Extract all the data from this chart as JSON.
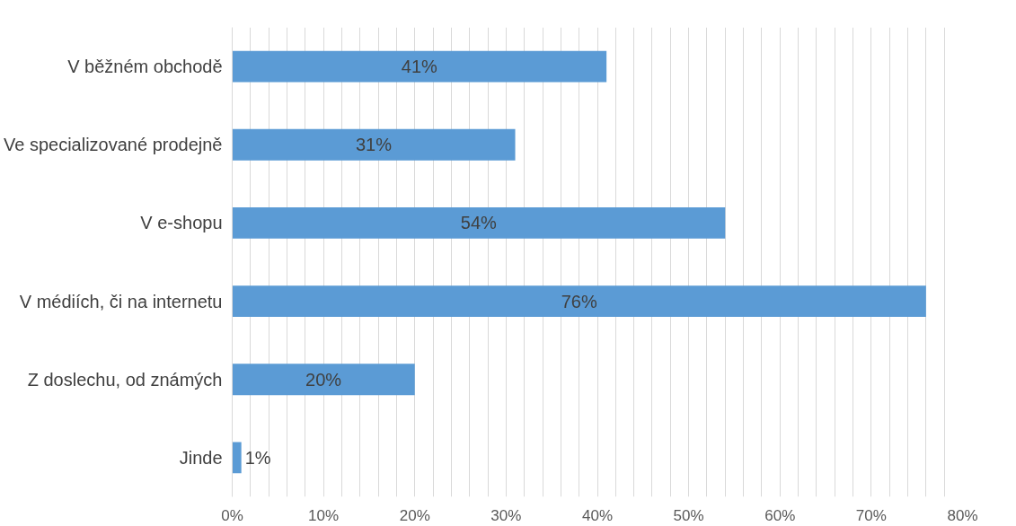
{
  "chart_data": {
    "type": "bar",
    "orientation": "horizontal",
    "categories": [
      "V běžném obchodě",
      "Ve specializované prodejně",
      "V e-shopu",
      "V médiích, či na internetu",
      "Z doslechu, od známých",
      "Jinde"
    ],
    "values": [
      41,
      31,
      54,
      76,
      20,
      1
    ],
    "value_labels": [
      "41%",
      "31%",
      "54%",
      "76%",
      "20%",
      "1%"
    ],
    "color": "#5b9bd5",
    "xlim": [
      0,
      80
    ],
    "xticks": [
      {
        "value": 0,
        "label": "0%"
      },
      {
        "value": 2,
        "label": null
      },
      {
        "value": 4,
        "label": null
      },
      {
        "value": 6,
        "label": null
      },
      {
        "value": 8,
        "label": null
      },
      {
        "value": 10,
        "label": "10%"
      },
      {
        "value": 12,
        "label": null
      },
      {
        "value": 14,
        "label": null
      },
      {
        "value": 16,
        "label": null
      },
      {
        "value": 18,
        "label": null
      },
      {
        "value": 20,
        "label": "20%"
      },
      {
        "value": 22,
        "label": null
      },
      {
        "value": 24,
        "label": null
      },
      {
        "value": 26,
        "label": null
      },
      {
        "value": 28,
        "label": null
      },
      {
        "value": 30,
        "label": "30%"
      },
      {
        "value": 32,
        "label": null
      },
      {
        "value": 34,
        "label": null
      },
      {
        "value": 36,
        "label": null
      },
      {
        "value": 38,
        "label": null
      },
      {
        "value": 40,
        "label": "40%"
      },
      {
        "value": 42,
        "label": null
      },
      {
        "value": 44,
        "label": null
      },
      {
        "value": 46,
        "label": null
      },
      {
        "value": 48,
        "label": null
      },
      {
        "value": 50,
        "label": "50%"
      },
      {
        "value": 52,
        "label": null
      },
      {
        "value": 54,
        "label": null
      },
      {
        "value": 56,
        "label": null
      },
      {
        "value": 58,
        "label": null
      },
      {
        "value": 60,
        "label": "60%"
      },
      {
        "value": 62,
        "label": null
      },
      {
        "value": 64,
        "label": null
      },
      {
        "value": 66,
        "label": null
      },
      {
        "value": 68,
        "label": null
      },
      {
        "value": 70,
        "label": "70%"
      },
      {
        "value": 72,
        "label": null
      },
      {
        "value": 74,
        "label": null
      },
      {
        "value": 76,
        "label": null
      },
      {
        "value": 78,
        "label": null
      },
      {
        "value": 80,
        "label": "80%"
      }
    ],
    "grid": "x"
  }
}
